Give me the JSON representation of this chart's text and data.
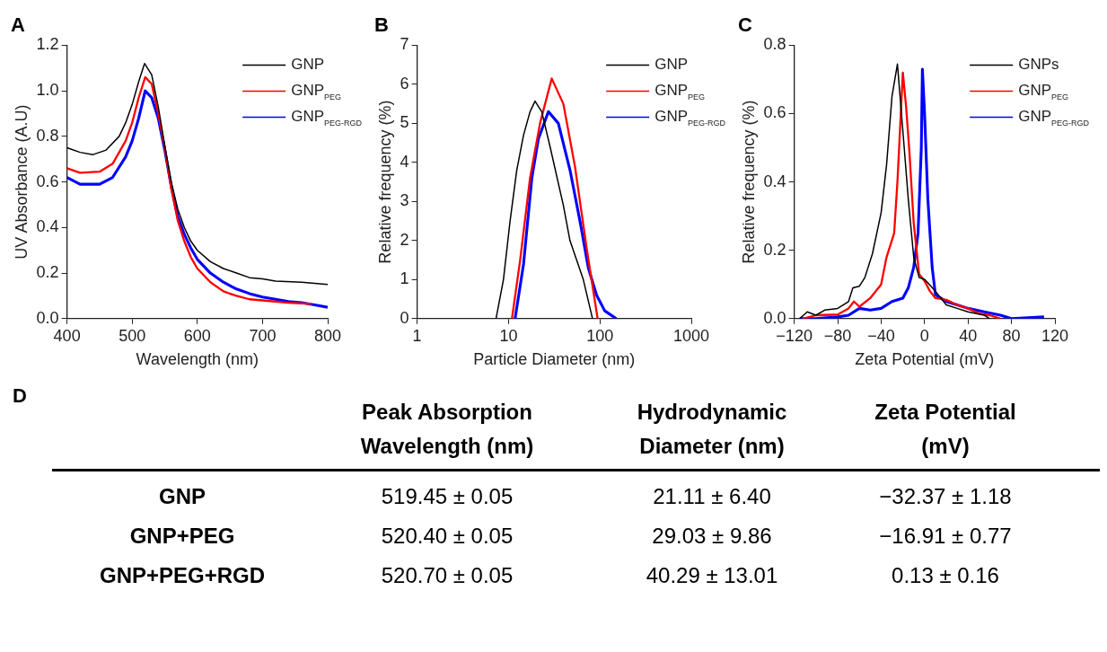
{
  "chart_data": [
    {
      "type": "line",
      "title": "A",
      "xlabel": "Wavelength (nm)",
      "ylabel": "UV Absorbance (A.U)",
      "xlim": [
        400,
        800
      ],
      "xticks": [
        400,
        500,
        600,
        700,
        800
      ],
      "ylim": [
        0,
        1.2
      ],
      "yticks": [
        {
          "value": 0,
          "label": "0.0"
        },
        {
          "value": 0.2,
          "label": "0.2"
        },
        {
          "value": 0.4,
          "label": "0.4"
        },
        {
          "value": 0.6,
          "label": "0.6"
        },
        {
          "value": 0.8,
          "label": "0.8"
        },
        {
          "value": 1,
          "label": "1.0"
        },
        {
          "value": 1.2,
          "label": "1.2"
        }
      ],
      "grid": false,
      "legend": "top right",
      "marker": "none",
      "line_style": "solid",
      "series": [
        {
          "name": "GNP",
          "color": "#000000",
          "x": [
            400,
            420,
            440,
            460,
            480,
            490,
            500,
            510,
            519,
            530,
            540,
            550,
            560,
            570,
            580,
            590,
            600,
            620,
            640,
            660,
            680,
            700,
            720,
            760,
            800
          ],
          "values": [
            0.75,
            0.73,
            0.72,
            0.74,
            0.8,
            0.86,
            0.94,
            1.04,
            1.12,
            1.07,
            0.93,
            0.76,
            0.6,
            0.48,
            0.4,
            0.34,
            0.3,
            0.25,
            0.22,
            0.2,
            0.18,
            0.175,
            0.165,
            0.16,
            0.15
          ]
        },
        {
          "name": "GNP$_{PEG}$",
          "color": "#ff0000",
          "x": [
            400,
            420,
            450,
            470,
            490,
            500,
            510,
            520,
            530,
            540,
            550,
            560,
            570,
            580,
            590,
            600,
            620,
            640,
            660,
            680,
            700,
            740,
            775
          ],
          "values": [
            0.66,
            0.64,
            0.645,
            0.68,
            0.78,
            0.86,
            0.97,
            1.06,
            1.03,
            0.9,
            0.75,
            0.57,
            0.43,
            0.34,
            0.27,
            0.22,
            0.16,
            0.12,
            0.1,
            0.085,
            0.08,
            0.07,
            0.065
          ]
        },
        {
          "name": "GNP$_{PEG-RGD}$",
          "color": "#0000ff",
          "x": [
            400,
            420,
            450,
            470,
            490,
            500,
            510,
            520,
            530,
            540,
            550,
            560,
            570,
            580,
            590,
            600,
            620,
            640,
            660,
            680,
            700,
            720,
            740,
            760,
            780,
            800
          ],
          "values": [
            0.62,
            0.59,
            0.59,
            0.62,
            0.71,
            0.78,
            0.88,
            1.0,
            0.97,
            0.88,
            0.74,
            0.58,
            0.45,
            0.37,
            0.31,
            0.26,
            0.2,
            0.16,
            0.13,
            0.11,
            0.095,
            0.085,
            0.075,
            0.07,
            0.06,
            0.05
          ]
        }
      ]
    },
    {
      "type": "line",
      "title": "B",
      "xlabel": "Particle Diameter (nm)",
      "ylabel": "Relative frequency (%)",
      "log": "x",
      "xlim": [
        1,
        1000
      ],
      "xticks": [
        1,
        10,
        100,
        1000
      ],
      "ylim": [
        0,
        7
      ],
      "yticks": [
        0,
        1,
        2,
        3,
        4,
        5,
        6,
        7
      ],
      "grid": false,
      "legend": "top right",
      "marker": "none",
      "line_style": "solid",
      "series": [
        {
          "name": "GNP",
          "color": "#000000",
          "x": [
            7.3,
            8.8,
            10.4,
            12.3,
            14.6,
            17.2,
            19.5,
            23.1,
            28.5,
            39.8,
            47,
            65.8,
            83
          ],
          "values": [
            0,
            1.0,
            2.5,
            3.8,
            4.7,
            5.3,
            5.57,
            5.3,
            4.4,
            2.9,
            2.0,
            1.0,
            0
          ]
        },
        {
          "name": "GNP$_{PEG}$",
          "color": "#ff0000",
          "x": [
            10.9,
            13.4,
            17.2,
            22.1,
            29.7,
            39.8,
            53.3,
            71.6,
            94.4
          ],
          "values": [
            0,
            1.5,
            3.6,
            5.0,
            6.15,
            5.5,
            3.9,
            1.8,
            0
          ]
        },
        {
          "name": "GNP$_{PEG-RGD}$",
          "color": "#0000ff",
          "x": [
            11.8,
            14.6,
            18,
            21.2,
            27.3,
            35.1,
            47.1,
            60.5,
            74.6,
            92,
            113,
            151
          ],
          "values": [
            0,
            1.4,
            3.6,
            4.6,
            5.3,
            5.0,
            3.8,
            2.5,
            1.3,
            0.6,
            0.2,
            0
          ]
        }
      ]
    },
    {
      "type": "line",
      "title": "C",
      "xlabel": "Zeta Potential (mV)",
      "ylabel": "Relative frequency (%)",
      "xlim": [
        -120,
        120
      ],
      "xticks": [
        {
          "value": -120,
          "label": "−120"
        },
        {
          "value": -80,
          "label": "−80"
        },
        {
          "value": -40,
          "label": "−40"
        },
        0,
        40,
        80,
        120
      ],
      "ylim": [
        0,
        0.8
      ],
      "yticks": [
        {
          "value": 0,
          "label": "0.0"
        },
        0.2,
        0.4,
        0.6,
        0.8
      ],
      "grid": false,
      "legend": "top right",
      "marker": "none",
      "line_style": "solid",
      "series": [
        {
          "name": "GNPs",
          "color": "#000000",
          "x": [
            -115,
            -108,
            -100,
            -92,
            -80,
            -70,
            -66,
            -60,
            -55,
            -48,
            -40,
            -35,
            -30,
            -25,
            -20,
            -15,
            -10,
            -5,
            0,
            10,
            20,
            30,
            40,
            55,
            60
          ],
          "values": [
            0,
            0.02,
            0.01,
            0.025,
            0.03,
            0.05,
            0.09,
            0.095,
            0.12,
            0.19,
            0.31,
            0.45,
            0.65,
            0.745,
            0.55,
            0.35,
            0.18,
            0.12,
            0.115,
            0.08,
            0.04,
            0.03,
            0.02,
            0.01,
            0
          ]
        },
        {
          "name": "GNP$_{PEG}$",
          "color": "#ff0000",
          "x": [
            -112,
            -100,
            -80,
            -70,
            -65,
            -60,
            -50,
            -40,
            -35,
            -28,
            -25,
            -20,
            -17,
            -14,
            -10,
            -5,
            0,
            5,
            10,
            20,
            30,
            40,
            50,
            60,
            70
          ],
          "values": [
            0,
            0.01,
            0.012,
            0.03,
            0.05,
            0.035,
            0.06,
            0.1,
            0.18,
            0.25,
            0.4,
            0.72,
            0.62,
            0.49,
            0.28,
            0.13,
            0.11,
            0.08,
            0.06,
            0.055,
            0.04,
            0.03,
            0.015,
            0.01,
            0
          ]
        },
        {
          "name": "GNP$_{PEG-RGD}$",
          "color": "#0000ff",
          "x": [
            -115,
            -100,
            -80,
            -70,
            -60,
            -50,
            -40,
            -30,
            -20,
            -15,
            -10,
            -6,
            -3,
            -2,
            0,
            3,
            7,
            10,
            20,
            30,
            40,
            55,
            70,
            80,
            110
          ],
          "values": [
            0,
            0,
            0.005,
            0.01,
            0.03,
            0.025,
            0.03,
            0.05,
            0.06,
            0.09,
            0.15,
            0.25,
            0.5,
            0.73,
            0.6,
            0.35,
            0.15,
            0.07,
            0.05,
            0.04,
            0.03,
            0.02,
            0.01,
            0,
            0.005
          ]
        }
      ]
    },
    {
      "type": "other",
      "title": "D",
      "categories": [
        "Peak Absorption Wavelength (nm)",
        "Hydrodynamic Diameter (nm)",
        "Zeta Potential (mV)"
      ],
      "y_categories": [
        "GNP",
        "GNP+PEG",
        "GNP+PEG+RGD"
      ],
      "cell_labels": [
        [
          "519.45 ± 0.05",
          "21.11 ± 6.40",
          "−32.37 ± 1.18"
        ],
        [
          "520.40 ± 0.05",
          "29.03 ± 9.86",
          "−16.91 ± 0.77"
        ],
        [
          "520.70 ± 0.05",
          "40.29 ± 13.01",
          "0.13 ± 0.16"
        ]
      ]
    }
  ]
}
